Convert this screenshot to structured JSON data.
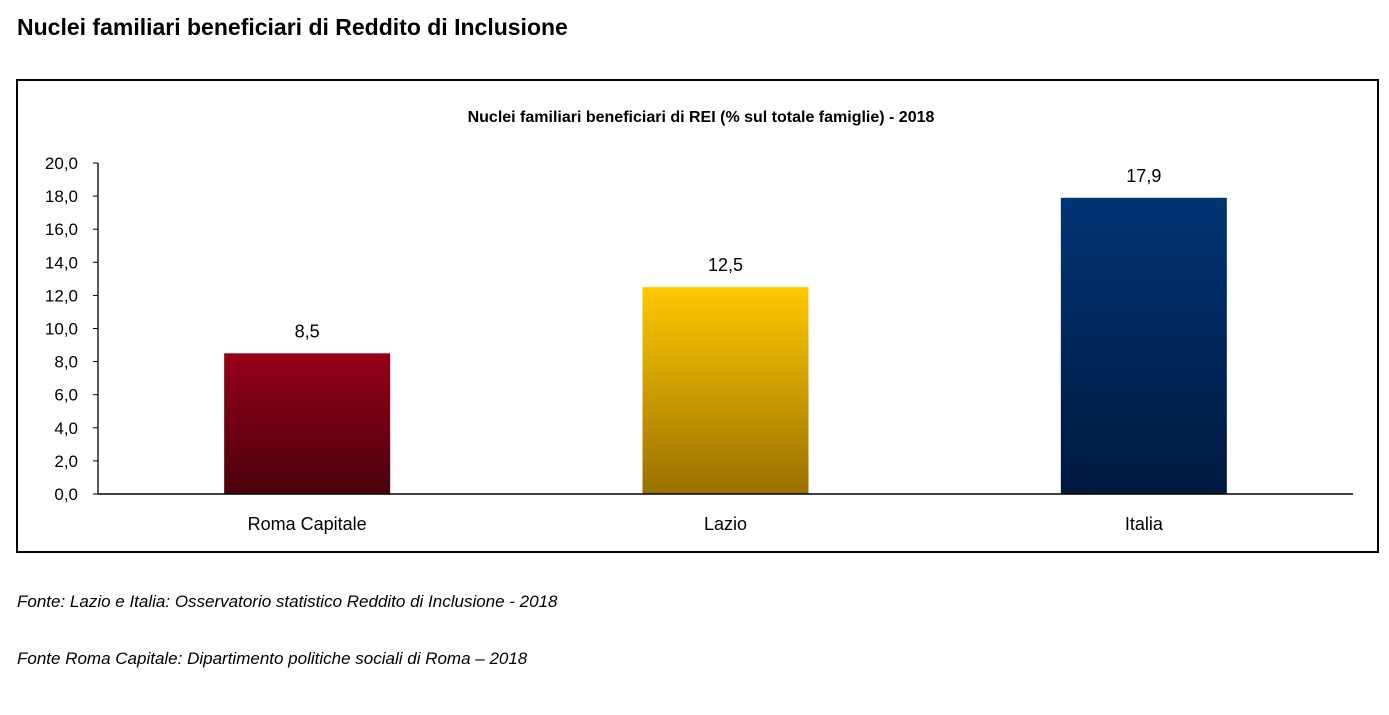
{
  "page": {
    "title": "Nuclei familiari beneficiari di Reddito di Inclusione",
    "notes": [
      "Fonte: Lazio e Italia: Osservatorio statistico Reddito di Inclusione - 2018",
      "Fonte Roma Capitale: Dipartimento politiche sociali di Roma – 2018"
    ]
  },
  "chart_data": {
    "type": "bar",
    "title": "Nuclei familiari beneficiari di REI (% sul totale famiglie) - 2018",
    "categories": [
      "Roma Capitale",
      "Lazio",
      "Italia"
    ],
    "values": [
      8.5,
      12.5,
      17.9
    ],
    "value_labels": [
      "8,5",
      "12,5",
      "17,9"
    ],
    "ylim": [
      0,
      20
    ],
    "yticks": [
      0,
      2,
      4,
      6,
      8,
      10,
      12,
      14,
      16,
      18,
      20
    ],
    "ytick_labels": [
      "0,0",
      "2,0",
      "4,0",
      "6,0",
      "8,0",
      "10,0",
      "12,0",
      "14,0",
      "16,0",
      "18,0",
      "20,0"
    ],
    "grid": false,
    "legend": "none",
    "bar_colors": [
      {
        "top": "#960018",
        "bottom": "#4a000c"
      },
      {
        "top": "#ffc800",
        "bottom": "#9a7000"
      },
      {
        "top": "#003574",
        "bottom": "#001840"
      }
    ]
  }
}
